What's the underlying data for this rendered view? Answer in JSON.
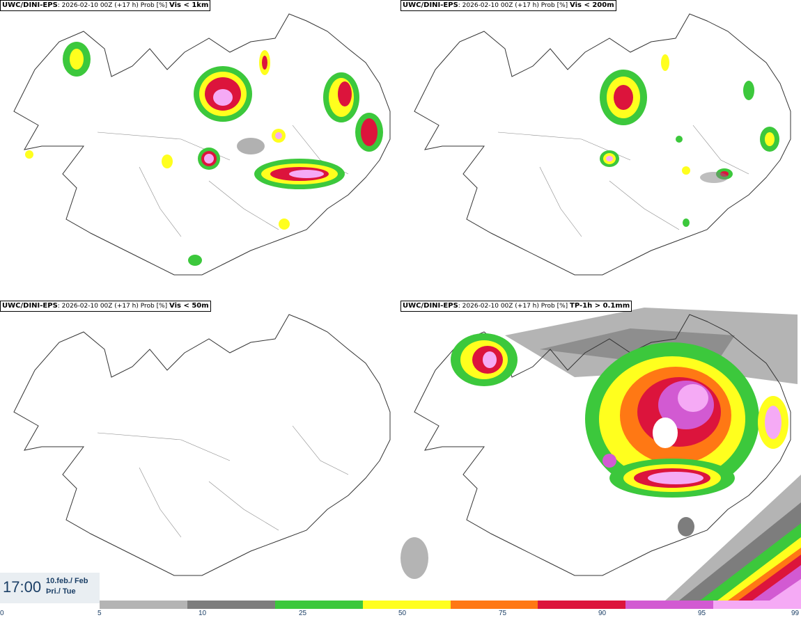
{
  "panels": [
    {
      "model": "UWC/DINI-EPS",
      "run": ": 2026-02-10 00Z (+17 h) Prob [%]",
      "param": "Vis < 1km"
    },
    {
      "model": "UWC/DINI-EPS",
      "run": ": 2026-02-10 00Z (+17 h) Prob [%]",
      "param": "Vis < 200m"
    },
    {
      "model": "UWC/DINI-EPS",
      "run": ": 2026-02-10 00Z (+17 h) Prob [%]",
      "param": "Vis < 50m"
    },
    {
      "model": "UWC/DINI-EPS",
      "run": ": 2026-02-10 00Z (+17 h) Prob [%]",
      "param": "TP-1h > 0.1mm"
    }
  ],
  "timestamp": {
    "time": "17:00",
    "date": "10.feb./ Feb",
    "day": "Þri./ Tue"
  },
  "colorbar": {
    "ticks": [
      "0",
      "5",
      "10",
      "25",
      "50",
      "75",
      "90",
      "95",
      "99"
    ],
    "colors": [
      "#b4b4b4",
      "#7d7d7d",
      "#3cc83c",
      "#ffff1e",
      "#ff7814",
      "#dc143c",
      "#d25ad2",
      "#f5aaf5"
    ]
  }
}
